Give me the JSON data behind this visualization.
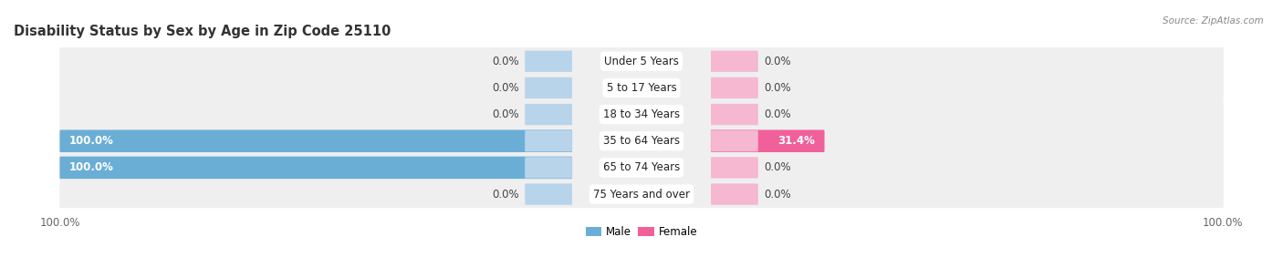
{
  "title": "Disability Status by Sex by Age in Zip Code 25110",
  "source": "Source: ZipAtlas.com",
  "categories": [
    "Under 5 Years",
    "5 to 17 Years",
    "18 to 34 Years",
    "35 to 64 Years",
    "65 to 74 Years",
    "75 Years and over"
  ],
  "male_values": [
    0.0,
    0.0,
    0.0,
    100.0,
    100.0,
    0.0
  ],
  "female_values": [
    0.0,
    0.0,
    0.0,
    31.4,
    0.0,
    0.0
  ],
  "male_color": "#6aaed6",
  "female_color": "#f0609a",
  "male_color_light": "#b8d4ea",
  "female_color_light": "#f5b8d0",
  "row_bg_color": "#efefef",
  "row_sep_color": "#ffffff",
  "xlim_left": -100,
  "xlim_right": 100,
  "stub_size": 8.0,
  "title_fontsize": 10.5,
  "label_fontsize": 8.5,
  "value_fontsize": 8.5,
  "tick_fontsize": 8.5,
  "figsize": [
    14.06,
    3.05
  ],
  "dpi": 100
}
